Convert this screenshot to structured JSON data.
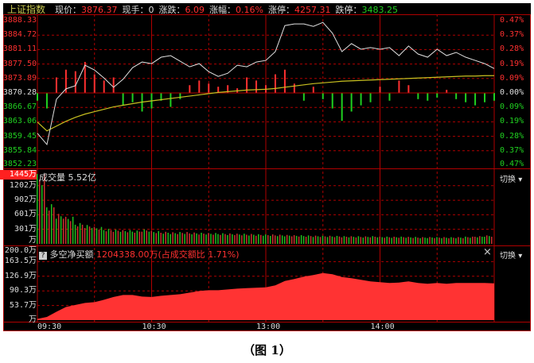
{
  "header": {
    "title": "上证指数",
    "price_label": "现价：",
    "price": "3876.37",
    "hand_label": "现手：",
    "hand": "0",
    "change_label": "涨跌：",
    "change": "6.09",
    "pct_label": "涨幅：",
    "pct": "0.16%",
    "limit_up_label": "涨停：",
    "limit_up": "4257.31",
    "limit_down_label": "跌停：",
    "limit_down": "3483.25"
  },
  "colors": {
    "up": "#ff3030",
    "down": "#20d020",
    "price_line": "#e0e0e0",
    "avg_line": "#c8c020",
    "grid": "#b00000",
    "net_area": "#ff3333"
  },
  "volume_panel": {
    "title": "成交量",
    "total": "5.52亿",
    "top_label": "1445万",
    "switch_label": "切换"
  },
  "net_panel": {
    "help_icon": "?",
    "title": "多空净买额",
    "value": "1204338.00万(占成交额比 1.71%)",
    "switch_label": "切换",
    "close_icon": "×"
  },
  "caption": "（图 1）",
  "chart_data": [
    {
      "type": "line",
      "title": "上证指数",
      "x_ticks": [
        "09:30",
        "10:30",
        "13:00",
        "14:00"
      ],
      "y_ticks_left": [
        "3888.33",
        "3884.72",
        "3881.11",
        "3877.50",
        "3873.89",
        "3870.28",
        "3866.67",
        "3863.06",
        "3859.45",
        "3855.84",
        "3852.23"
      ],
      "y_ticks_right": [
        "0.47%",
        "0.37%",
        "0.28%",
        "0.19%",
        "0.09%",
        "0.00%",
        "0.09%",
        "0.19%",
        "0.28%",
        "0.37%",
        "0.47%"
      ],
      "ylim": [
        3852.23,
        3888.33
      ],
      "prev_close": 3870.28,
      "grid": true,
      "x_times": [
        "09:30",
        "09:35",
        "09:40",
        "09:45",
        "09:50",
        "09:55",
        "10:00",
        "10:05",
        "10:10",
        "10:15",
        "10:20",
        "10:25",
        "10:30",
        "10:35",
        "10:40",
        "10:45",
        "10:50",
        "10:55",
        "11:00",
        "11:05",
        "11:10",
        "11:15",
        "11:20",
        "11:25",
        "13:00",
        "13:05",
        "13:10",
        "13:15",
        "13:20",
        "13:25",
        "13:30",
        "13:35",
        "13:40",
        "13:45",
        "13:50",
        "13:55",
        "14:00",
        "14:05",
        "14:10",
        "14:15",
        "14:20",
        "14:25",
        "14:30",
        "14:35",
        "14:40",
        "14:45",
        "14:50",
        "14:55",
        "15:00"
      ],
      "series": [
        {
          "values": [
            3860.2,
            3857.4,
            3868.7,
            3871.3,
            3872.1,
            3877.2,
            3876.0,
            3874.0,
            3871.7,
            3873.7,
            3876.6,
            3878.0,
            3877.6,
            3879.2,
            3879.6,
            3878.2,
            3876.8,
            3877.6,
            3875.6,
            3874.4,
            3875.2,
            3877.2,
            3876.8,
            3878.0,
            3878.4,
            3880.6,
            3887.1,
            3887.5,
            3887.5,
            3886.9,
            3887.9,
            3885.2,
            3880.6,
            3882.6,
            3881.2,
            3881.6,
            3881.2,
            3881.6,
            3879.6,
            3882.0,
            3880.0,
            3879.2,
            3881.2,
            3879.6,
            3880.4,
            3879.2,
            3878.4,
            3877.6,
            3876.37
          ]
        },
        {
          "values": [
            3863.0,
            3860.8,
            3862.0,
            3863.2,
            3864.2,
            3865.0,
            3865.6,
            3866.2,
            3866.8,
            3867.2,
            3867.6,
            3868.0,
            3868.3,
            3868.6,
            3868.9,
            3869.2,
            3869.5,
            3869.8,
            3870.1,
            3870.4,
            3870.6,
            3870.8,
            3871.0,
            3871.1,
            3871.2,
            3871.4,
            3871.7,
            3872.0,
            3872.3,
            3872.6,
            3872.8,
            3873.0,
            3873.2,
            3873.3,
            3873.4,
            3873.5,
            3873.6,
            3873.7,
            3873.8,
            3873.9,
            3874.0,
            3874.1,
            3874.2,
            3874.3,
            3874.4,
            3874.5,
            3874.5,
            3874.6,
            3874.6
          ]
        }
      ],
      "strength_pct": [
        -0.05,
        -0.1,
        0.1,
        0.15,
        0.14,
        0.2,
        0.12,
        0.08,
        0.1,
        -0.08,
        -0.06,
        -0.12,
        -0.1,
        -0.05,
        -0.09,
        -0.04,
        0.05,
        0.08,
        0.06,
        0.04,
        0.05,
        0.03,
        0.1,
        0.08,
        0.05,
        0.12,
        0.15,
        0.06,
        -0.05,
        0.04,
        -0.04,
        -0.1,
        -0.18,
        -0.12,
        -0.08,
        -0.06,
        0.04,
        -0.05,
        0.08,
        0.05,
        -0.04,
        -0.05,
        -0.03,
        0.02,
        -0.04,
        -0.06,
        -0.08,
        -0.06,
        -0.05
      ]
    },
    {
      "type": "bar",
      "title": "成交量",
      "unit": "万",
      "y_ticks": [
        "1445万",
        "1202万",
        "902万",
        "601万",
        "301万",
        "万"
      ],
      "ylim": [
        0,
        1445
      ],
      "values": [
        1445,
        820,
        620,
        560,
        430,
        390,
        350,
        310,
        295,
        285,
        275,
        300,
        265,
        250,
        240,
        245,
        235,
        230,
        225,
        220,
        215,
        210,
        205,
        200,
        195,
        190,
        185,
        180,
        175,
        170,
        168,
        165,
        160,
        158,
        155,
        160,
        150,
        148,
        150,
        145,
        140,
        142,
        140,
        138,
        140,
        150,
        160,
        175,
        200
      ]
    },
    {
      "type": "area",
      "title": "多空净买额",
      "unit": "万",
      "y_ticks": [
        "200.0万",
        "163.5万",
        "126.9万",
        "90.3万",
        "53.7万",
        "万"
      ],
      "ylim": [
        17.1,
        200.0
      ],
      "values": [
        20,
        25,
        38,
        50,
        55,
        60,
        62,
        68,
        75,
        80,
        80,
        76,
        75,
        78,
        80,
        82,
        86,
        90,
        92,
        92,
        94,
        96,
        97,
        98,
        99,
        104,
        115,
        120,
        126,
        130,
        135,
        132,
        125,
        122,
        118,
        114,
        112,
        110,
        111,
        114,
        110,
        108,
        110,
        108,
        110,
        110,
        110,
        110,
        109
      ]
    }
  ]
}
